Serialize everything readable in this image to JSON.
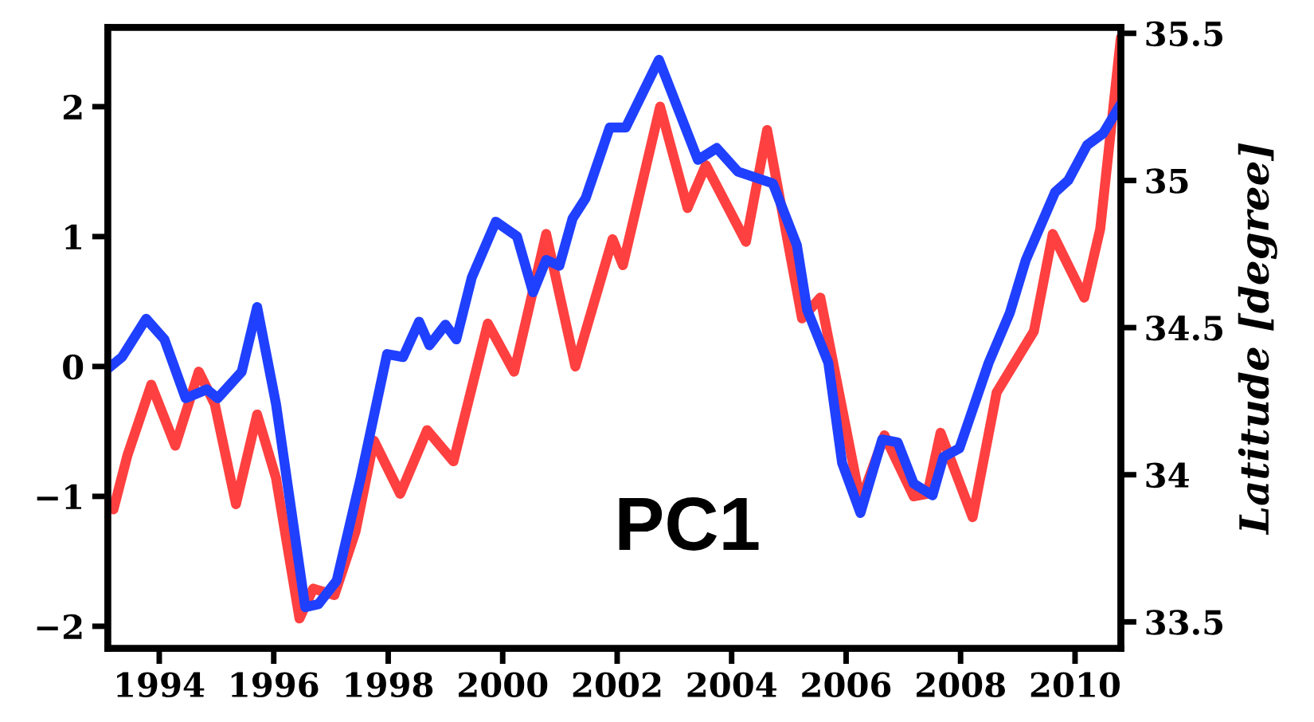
{
  "chart_data": {
    "type": "line",
    "y2label": "Latitude [degree]",
    "annotations": [
      "PC1"
    ],
    "xlim": [
      1993.1,
      2010.8
    ],
    "xticks": [
      1994,
      1996,
      1998,
      2000,
      2002,
      2004,
      2006,
      2008,
      2010
    ],
    "ylim": [
      -2.17,
      2.61
    ],
    "yticks": [
      -2,
      -1,
      0,
      1,
      2
    ],
    "y2lim": [
      33.41,
      35.52
    ],
    "y2ticks": [
      33.5,
      34,
      34.5,
      35,
      35.5
    ],
    "line_style": "solid",
    "marker": "none",
    "series": [
      {
        "color": "#ff4040",
        "x": [
          1993.1,
          1993.2,
          1993.44,
          1993.86,
          1994.28,
          1994.69,
          1994.97,
          1995.34,
          1995.71,
          1996.04,
          1996.45,
          1996.69,
          1997.06,
          1997.43,
          1997.75,
          1998.21,
          1998.68,
          1999.14,
          1999.74,
          2000.2,
          2000.76,
          2001.27,
          2001.92,
          2002.1,
          2002.75,
          2003.23,
          2003.55,
          2004.25,
          2004.62,
          2005.23,
          2005.55,
          2006.25,
          2006.67,
          2007.18,
          2007.42,
          2007.65,
          2008.21,
          2008.63,
          2009.28,
          2009.61,
          2010.16,
          2010.44,
          2010.8
        ],
        "values": [
          -1.06,
          -1.1,
          -0.69,
          -0.14,
          -0.61,
          -0.04,
          -0.29,
          -1.06,
          -0.37,
          -0.86,
          -1.94,
          -1.71,
          -1.76,
          -1.27,
          -0.57,
          -0.98,
          -0.49,
          -0.73,
          0.33,
          -0.04,
          1.02,
          0.0,
          0.98,
          0.78,
          2.0,
          1.22,
          1.55,
          0.96,
          1.82,
          0.37,
          0.53,
          -1.04,
          -0.53,
          -1.0,
          -0.98,
          -0.51,
          -1.16,
          -0.2,
          0.27,
          1.02,
          0.53,
          1.06,
          2.53
        ]
      },
      {
        "color": "#2040ff",
        "axis": "y2",
        "x": [
          1993.1,
          1993.35,
          1993.77,
          1994.09,
          1994.46,
          1994.83,
          1995.02,
          1995.44,
          1995.71,
          1996.04,
          1996.55,
          1996.78,
          1997.1,
          1997.52,
          1997.98,
          1998.26,
          1998.54,
          1998.72,
          1999.0,
          1999.19,
          1999.46,
          1999.88,
          2000.25,
          2000.53,
          2000.76,
          2000.99,
          2001.22,
          2001.45,
          2001.87,
          2002.15,
          2002.73,
          2003.41,
          2003.74,
          2004.11,
          2004.72,
          2005.14,
          2005.32,
          2005.69,
          2005.93,
          2006.25,
          2006.63,
          2006.9,
          2007.18,
          2007.51,
          2007.7,
          2007.98,
          2008.49,
          2008.86,
          2009.14,
          2009.65,
          2009.88,
          2010.21,
          2010.49,
          2010.8
        ],
        "values": [
          34.36,
          34.4,
          34.53,
          34.46,
          34.26,
          34.29,
          34.26,
          34.35,
          34.57,
          34.24,
          33.55,
          33.56,
          33.64,
          33.99,
          34.41,
          34.4,
          34.52,
          34.44,
          34.51,
          34.46,
          34.67,
          34.86,
          34.81,
          34.62,
          34.73,
          34.71,
          34.87,
          34.94,
          35.18,
          35.18,
          35.41,
          35.07,
          35.11,
          35.03,
          34.99,
          34.78,
          34.56,
          34.38,
          34.04,
          33.87,
          34.12,
          34.11,
          33.97,
          33.93,
          34.06,
          34.09,
          34.38,
          34.55,
          34.73,
          34.96,
          35.0,
          35.12,
          35.16,
          35.26
        ]
      }
    ]
  }
}
